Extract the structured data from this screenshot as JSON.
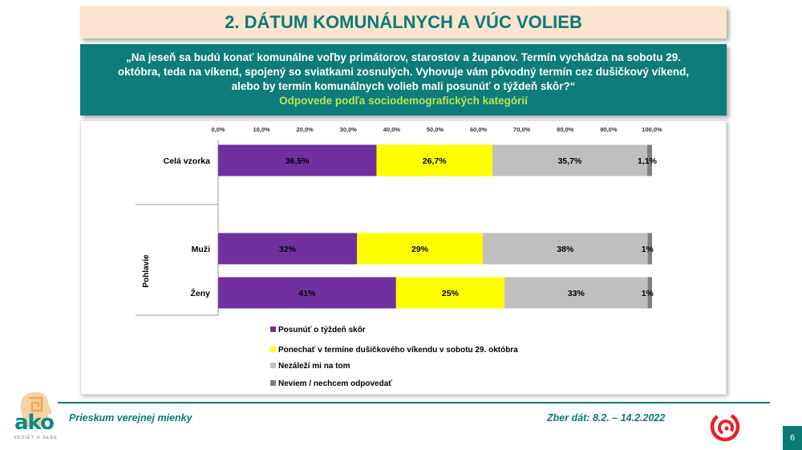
{
  "header": {
    "title": "2. DÁTUM KOMUNÁLNYCH A VÚC VOLIEB",
    "question_line1": "„Na jeseň sa budú konať komunálne voľby primátorov, starostov a županov. Termín vychádza na sobotu 29.",
    "question_line2": "októbra, teda na víkend, spojený so sviatkami zosnulých. Vyhovuje vám pôvodný termín cez dušičkový víkend,",
    "question_line3": "alebo by termín komunálnych volieb mali posunúť o týždeň skôr?“",
    "subtitle": "Odpovede podľa sociodemografických kategórií"
  },
  "footer": {
    "left": "Prieskum verejnej mienky",
    "right": "Zber dát: 8.2. – 14.2.2022",
    "page": "6",
    "logo_text": "ako",
    "logo_tag": "VEDIEŤ O SEBE"
  },
  "chart_data": {
    "type": "bar",
    "orientation": "horizontal",
    "stacked": true,
    "xlim": [
      0,
      100
    ],
    "x_ticks": [
      "0,0%",
      "10,0%",
      "20,0%",
      "30,0%",
      "40,0%",
      "50,0%",
      "60,0%",
      "70,0%",
      "80,0%",
      "90,0%",
      "100,0%"
    ],
    "group_label": "Pohlavie",
    "categories": [
      "Celá vzorka",
      "Muži",
      "Ženy"
    ],
    "series": [
      {
        "name": "Posunúť o týždeň skôr",
        "color": "#7030a0",
        "values": [
          36.5,
          32,
          41
        ],
        "labels": [
          "36,5%",
          "32%",
          "41%"
        ]
      },
      {
        "name": "Ponechať v termíne dušičkového víkendu v sobotu 29. októbra",
        "color": "#ffff00",
        "values": [
          26.7,
          29,
          25
        ],
        "labels": [
          "26,7%",
          "29%",
          "25%"
        ]
      },
      {
        "name": "Nezáleží mi na tom",
        "color": "#bfbfbf",
        "values": [
          35.7,
          38,
          33
        ],
        "labels": [
          "35,7%",
          "38%",
          "33%"
        ]
      },
      {
        "name": "Neviem / nechcem odpovedať",
        "color": "#7f7f7f",
        "values": [
          1.1,
          1,
          1
        ],
        "labels": [
          "1,1%",
          "1%",
          "1%"
        ]
      }
    ],
    "grid": false,
    "legend": "bottom-left"
  }
}
